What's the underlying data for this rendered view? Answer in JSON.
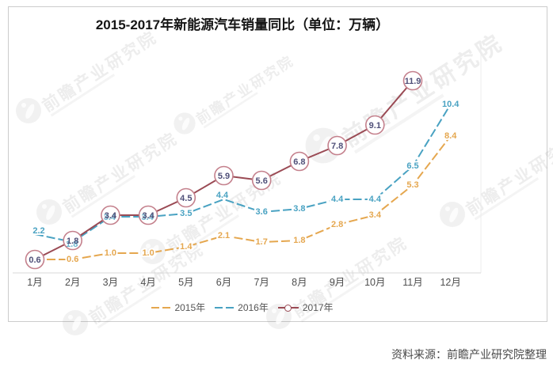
{
  "chart": {
    "title": "2015-2017年新能源汽车销量同比（单位：万辆）"
  },
  "chart_data": {
    "type": "line",
    "title": "2015-2017年新能源汽车销量同比（单位：万辆）",
    "categories": [
      "1月",
      "2月",
      "3月",
      "4月",
      "5月",
      "6月",
      "7月",
      "8月",
      "9月",
      "10月",
      "11月",
      "12月"
    ],
    "series": [
      {
        "name": "2015年",
        "color": "#e5a74f",
        "line_style": "dashed",
        "values": [
          0.6,
          0.6,
          1.0,
          1.0,
          1.4,
          2.1,
          1.7,
          1.8,
          2.8,
          3.4,
          5.3,
          8.4
        ],
        "hidden_labels": [
          0
        ]
      },
      {
        "name": "2016年",
        "color": "#49a2c2",
        "line_style": "dashed",
        "values": [
          2.2,
          1.8,
          3.4,
          3.4,
          3.5,
          4.4,
          3.6,
          3.8,
          4.4,
          4.4,
          6.5,
          10.4
        ],
        "hidden_labels": [
          1,
          2,
          3
        ]
      },
      {
        "name": "2017年",
        "color": "#9a4a54",
        "line_style": "solid",
        "marker": "circle",
        "values": [
          0.6,
          1.8,
          3.4,
          3.4,
          4.5,
          5.9,
          5.6,
          6.8,
          7.8,
          9.1,
          11.9
        ]
      }
    ],
    "xlabel": "",
    "ylabel": "",
    "ylim": [
      0,
      12.5
    ],
    "grid": false,
    "legend_position": "bottom"
  },
  "watermark": {
    "text": "前瞻产业研究院"
  },
  "source": "资料来源：前瞻产业研究院整理"
}
